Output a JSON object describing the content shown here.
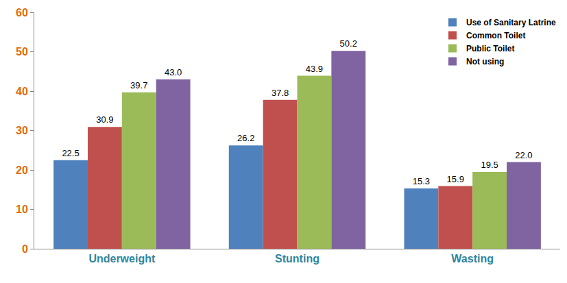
{
  "chart_data": {
    "type": "bar",
    "categories": [
      "Underweight",
      "Stunting",
      "Wasting"
    ],
    "series": [
      {
        "name": "Use of Sanitary Latrine",
        "color": "#4f81bd",
        "values": [
          22.5,
          26.2,
          15.3
        ],
        "value_labels": [
          "22.5",
          "26.2",
          "15.3"
        ]
      },
      {
        "name": "Common Toilet",
        "color": "#c0504d",
        "values": [
          30.9,
          37.8,
          15.9
        ],
        "value_labels": [
          "30.9",
          "37.8",
          "15.9"
        ]
      },
      {
        "name": "Public Toilet",
        "color": "#9bbb59",
        "values": [
          39.7,
          43.9,
          19.5
        ],
        "value_labels": [
          "39.7",
          "43.9",
          "19.5"
        ]
      },
      {
        "name": "Not using",
        "color": "#8064a2",
        "values": [
          43.0,
          50.2,
          22.0
        ],
        "value_labels": [
          "43.0",
          "50.2",
          "22.0"
        ]
      }
    ],
    "ylim": [
      0,
      60
    ],
    "yticks": [
      0,
      10,
      20,
      30,
      40,
      50,
      60
    ],
    "grid": false,
    "legend": "top-right",
    "data_labels": true
  }
}
